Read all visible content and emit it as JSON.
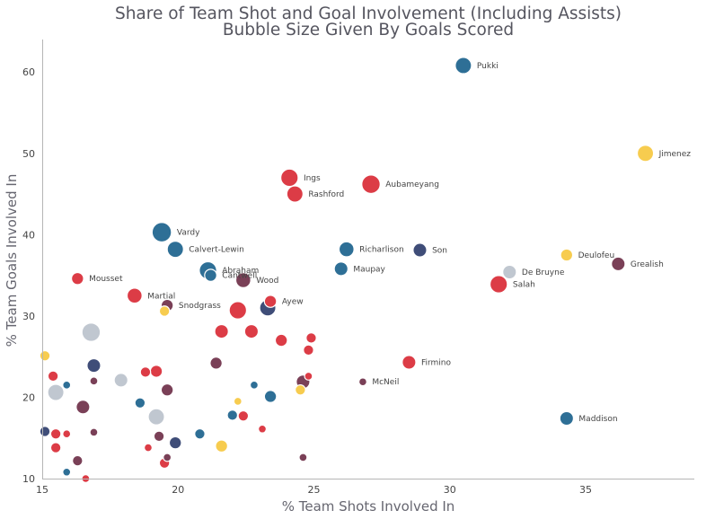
{
  "chart_data": {
    "type": "scatter",
    "title_line1": "Share of Team Shot and Goal Involvement (Including Assists)",
    "title_line2": "Bubble Size Given By Goals Scored",
    "xlabel": "% Team Shots Involved In",
    "ylabel": "% Team Goals Involved In",
    "xlim": [
      15,
      39
    ],
    "ylim": [
      10,
      64
    ],
    "xticks": [
      "15",
      "20",
      "25",
      "30",
      "35"
    ],
    "yticks": [
      "10",
      "20",
      "30",
      "40",
      "50",
      "60"
    ],
    "grid": false,
    "colors": {
      "red": "#dc3c46",
      "blue": "#2e6f96",
      "navy": "#3f4d78",
      "maroon": "#7a4057",
      "yellow": "#f7cc4f",
      "gray": "#c0c7d0"
    },
    "points": [
      {
        "label": "Pukki",
        "x": 30.5,
        "y": 60.8,
        "goals": 6,
        "color": "blue"
      },
      {
        "label": "Jimenez",
        "x": 37.2,
        "y": 50.0,
        "goals": 6,
        "color": "yellow"
      },
      {
        "label": "Ings",
        "x": 24.1,
        "y": 47.0,
        "goals": 7,
        "color": "red"
      },
      {
        "label": "Rashford",
        "x": 24.3,
        "y": 45.0,
        "goals": 6,
        "color": "red"
      },
      {
        "label": "Aubameyang",
        "x": 27.1,
        "y": 46.2,
        "goals": 8,
        "color": "red"
      },
      {
        "label": "Vardy",
        "x": 19.4,
        "y": 40.3,
        "goals": 9,
        "color": "blue"
      },
      {
        "label": "Calvert-Lewin",
        "x": 19.9,
        "y": 38.2,
        "goals": 6,
        "color": "blue"
      },
      {
        "label": "Richarlison",
        "x": 26.2,
        "y": 38.2,
        "goals": 5,
        "color": "blue"
      },
      {
        "label": "Son",
        "x": 28.9,
        "y": 38.1,
        "goals": 4,
        "color": "navy"
      },
      {
        "label": "Deulofeu",
        "x": 34.3,
        "y": 37.5,
        "goals": 3,
        "color": "yellow"
      },
      {
        "label": "Grealish",
        "x": 36.2,
        "y": 36.4,
        "goals": 4,
        "color": "maroon"
      },
      {
        "label": "Maupay",
        "x": 26.0,
        "y": 35.8,
        "goals": 4,
        "color": "blue"
      },
      {
        "label": "De Bruyne",
        "x": 32.2,
        "y": 35.4,
        "goals": 4,
        "color": "gray"
      },
      {
        "label": "Abraham",
        "x": 21.1,
        "y": 35.6,
        "goals": 7,
        "color": "blue"
      },
      {
        "label": "Cantwell",
        "x": 21.2,
        "y": 35.0,
        "goals": 3,
        "color": "blue"
      },
      {
        "label": "Wood",
        "x": 22.4,
        "y": 34.4,
        "goals": 5,
        "color": "maroon"
      },
      {
        "label": "Salah",
        "x": 31.8,
        "y": 33.9,
        "goals": 7,
        "color": "red"
      },
      {
        "label": "Mousset",
        "x": 16.3,
        "y": 34.6,
        "goals": 3,
        "color": "red"
      },
      {
        "label": "Martial",
        "x": 18.4,
        "y": 32.5,
        "goals": 5,
        "color": "red"
      },
      {
        "label": "Ayew",
        "x": 23.4,
        "y": 31.8,
        "goals": 3,
        "color": "red"
      },
      {
        "label": "Snodgrass",
        "x": 19.6,
        "y": 31.3,
        "goals": 3,
        "color": "maroon"
      },
      {
        "label": "",
        "x": 19.5,
        "y": 30.6,
        "goals": 2,
        "color": "yellow"
      },
      {
        "label": "",
        "x": 22.2,
        "y": 30.7,
        "goals": 7,
        "color": "red"
      },
      {
        "label": "",
        "x": 23.3,
        "y": 31.0,
        "goals": 6,
        "color": "navy"
      },
      {
        "label": "",
        "x": 16.8,
        "y": 28.0,
        "goals": 8,
        "color": "gray"
      },
      {
        "label": "",
        "x": 21.6,
        "y": 28.1,
        "goals": 4,
        "color": "red"
      },
      {
        "label": "",
        "x": 22.7,
        "y": 28.1,
        "goals": 4,
        "color": "red"
      },
      {
        "label": "",
        "x": 23.8,
        "y": 27.0,
        "goals": 3,
        "color": "red"
      },
      {
        "label": "",
        "x": 24.9,
        "y": 27.3,
        "goals": 2,
        "color": "red"
      },
      {
        "label": "",
        "x": 24.8,
        "y": 25.8,
        "goals": 2,
        "color": "red"
      },
      {
        "label": "",
        "x": 15.1,
        "y": 25.1,
        "goals": 2,
        "color": "yellow"
      },
      {
        "label": "Firmino",
        "x": 28.5,
        "y": 24.3,
        "goals": 4,
        "color": "red"
      },
      {
        "label": "",
        "x": 16.9,
        "y": 23.9,
        "goals": 4,
        "color": "navy"
      },
      {
        "label": "",
        "x": 21.4,
        "y": 24.2,
        "goals": 3,
        "color": "maroon"
      },
      {
        "label": "",
        "x": 18.8,
        "y": 23.1,
        "goals": 2,
        "color": "red"
      },
      {
        "label": "",
        "x": 19.2,
        "y": 23.2,
        "goals": 3,
        "color": "red"
      },
      {
        "label": "",
        "x": 15.4,
        "y": 22.6,
        "goals": 2,
        "color": "red"
      },
      {
        "label": "",
        "x": 17.9,
        "y": 22.1,
        "goals": 4,
        "color": "gray"
      },
      {
        "label": "",
        "x": 16.9,
        "y": 22.0,
        "goals": 1,
        "color": "maroon"
      },
      {
        "label": "",
        "x": 15.9,
        "y": 21.5,
        "goals": 1,
        "color": "blue"
      },
      {
        "label": "",
        "x": 15.5,
        "y": 20.6,
        "goals": 6,
        "color": "gray"
      },
      {
        "label": "",
        "x": 19.6,
        "y": 20.9,
        "goals": 3,
        "color": "maroon"
      },
      {
        "label": "McNeil",
        "x": 26.8,
        "y": 21.9,
        "goals": 1,
        "color": "maroon"
      },
      {
        "label": "",
        "x": 24.6,
        "y": 21.9,
        "goals": 4,
        "color": "maroon"
      },
      {
        "label": "",
        "x": 24.8,
        "y": 22.6,
        "goals": 1,
        "color": "red"
      },
      {
        "label": "",
        "x": 22.8,
        "y": 21.5,
        "goals": 1,
        "color": "blue"
      },
      {
        "label": "",
        "x": 24.5,
        "y": 20.9,
        "goals": 2,
        "color": "yellow"
      },
      {
        "label": "",
        "x": 23.4,
        "y": 20.1,
        "goals": 3,
        "color": "blue"
      },
      {
        "label": "",
        "x": 22.2,
        "y": 19.5,
        "goals": 1,
        "color": "yellow"
      },
      {
        "label": "",
        "x": 18.6,
        "y": 19.3,
        "goals": 2,
        "color": "blue"
      },
      {
        "label": "",
        "x": 16.5,
        "y": 18.8,
        "goals": 4,
        "color": "maroon"
      },
      {
        "label": "",
        "x": 19.2,
        "y": 17.6,
        "goals": 6,
        "color": "gray"
      },
      {
        "label": "",
        "x": 22.0,
        "y": 17.8,
        "goals": 2,
        "color": "blue"
      },
      {
        "label": "",
        "x": 22.4,
        "y": 17.7,
        "goals": 2,
        "color": "red"
      },
      {
        "label": "Maddison",
        "x": 34.3,
        "y": 17.4,
        "goals": 4,
        "color": "blue"
      },
      {
        "label": "",
        "x": 15.1,
        "y": 15.8,
        "goals": 2,
        "color": "navy"
      },
      {
        "label": "",
        "x": 15.5,
        "y": 15.5,
        "goals": 2,
        "color": "red"
      },
      {
        "label": "",
        "x": 15.9,
        "y": 15.5,
        "goals": 1,
        "color": "red"
      },
      {
        "label": "",
        "x": 16.9,
        "y": 15.7,
        "goals": 1,
        "color": "maroon"
      },
      {
        "label": "",
        "x": 19.3,
        "y": 15.2,
        "goals": 2,
        "color": "maroon"
      },
      {
        "label": "",
        "x": 20.8,
        "y": 15.5,
        "goals": 2,
        "color": "blue"
      },
      {
        "label": "",
        "x": 23.1,
        "y": 16.1,
        "goals": 1,
        "color": "red"
      },
      {
        "label": "",
        "x": 19.9,
        "y": 14.4,
        "goals": 3,
        "color": "navy"
      },
      {
        "label": "",
        "x": 21.6,
        "y": 14.0,
        "goals": 3,
        "color": "yellow"
      },
      {
        "label": "",
        "x": 15.5,
        "y": 13.8,
        "goals": 2,
        "color": "red"
      },
      {
        "label": "",
        "x": 18.9,
        "y": 13.8,
        "goals": 1,
        "color": "red"
      },
      {
        "label": "",
        "x": 19.6,
        "y": 12.6,
        "goals": 1,
        "color": "maroon"
      },
      {
        "label": "",
        "x": 16.3,
        "y": 12.2,
        "goals": 2,
        "color": "maroon"
      },
      {
        "label": "",
        "x": 19.5,
        "y": 11.9,
        "goals": 2,
        "color": "red"
      },
      {
        "label": "",
        "x": 24.6,
        "y": 12.6,
        "goals": 1,
        "color": "maroon"
      },
      {
        "label": "",
        "x": 15.9,
        "y": 10.8,
        "goals": 1,
        "color": "blue"
      },
      {
        "label": "",
        "x": 16.6,
        "y": 10.0,
        "goals": 1,
        "color": "red"
      }
    ]
  }
}
